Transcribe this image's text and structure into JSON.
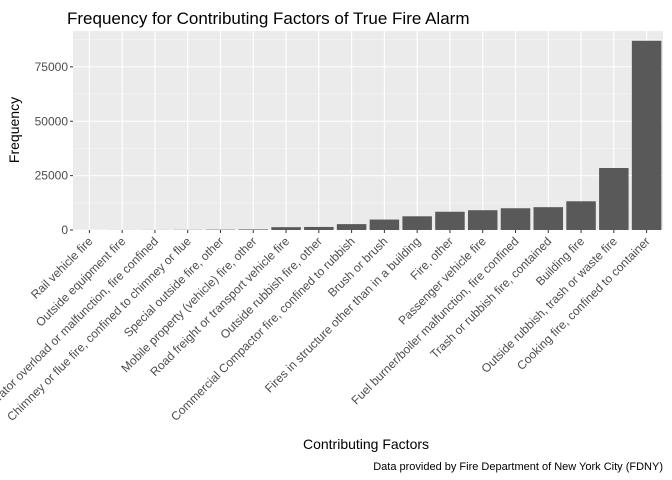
{
  "chart_data": {
    "type": "bar",
    "title": "Frequency for Contributing Factors of True Fire Alarm",
    "xlabel": "Contributing Factors",
    "ylabel": "Frequency",
    "caption": "Data provided by Fire Department of New York City (FDNY)",
    "categories": [
      "Rail vehicle fire",
      "Outside equipment fire",
      "Incinerator overload or malfunction, fire confined",
      "Chimney or flue fire, confined to chimney or flue",
      "Special outside fire, other",
      "Mobile property (vehicle) fire, other",
      "Road freight or transport vehicle fire",
      "Outside rubbish fire, other",
      "Commercial Compactor fire, confined to rubbish",
      "Brush or brush",
      "Fires in structure other than in a building",
      "Fire, other",
      "Passenger vehicle fire",
      "Fuel burner/boiler malfunction, fire confined",
      "Trash or rubbish fire, contained",
      "Building fire",
      "Outside rubbish, trash or waste fire",
      "Cooking fire, confined to container"
    ],
    "values": [
      10,
      30,
      40,
      80,
      150,
      250,
      1300,
      1400,
      2700,
      4800,
      6300,
      8400,
      9100,
      10000,
      10500,
      13200,
      28500,
      87000
    ],
    "yticks": [
      0,
      25000,
      50000,
      75000
    ],
    "ytick_labels": [
      "0",
      "25000",
      "50000",
      "75000"
    ],
    "ylim": [
      0,
      91500
    ],
    "grid": true,
    "colors": {
      "panel": "#ebebeb",
      "grid_major": "#ffffff",
      "bar": "#595959",
      "tick_text": "#4d4d4d",
      "tick_mark": "#333333"
    }
  }
}
